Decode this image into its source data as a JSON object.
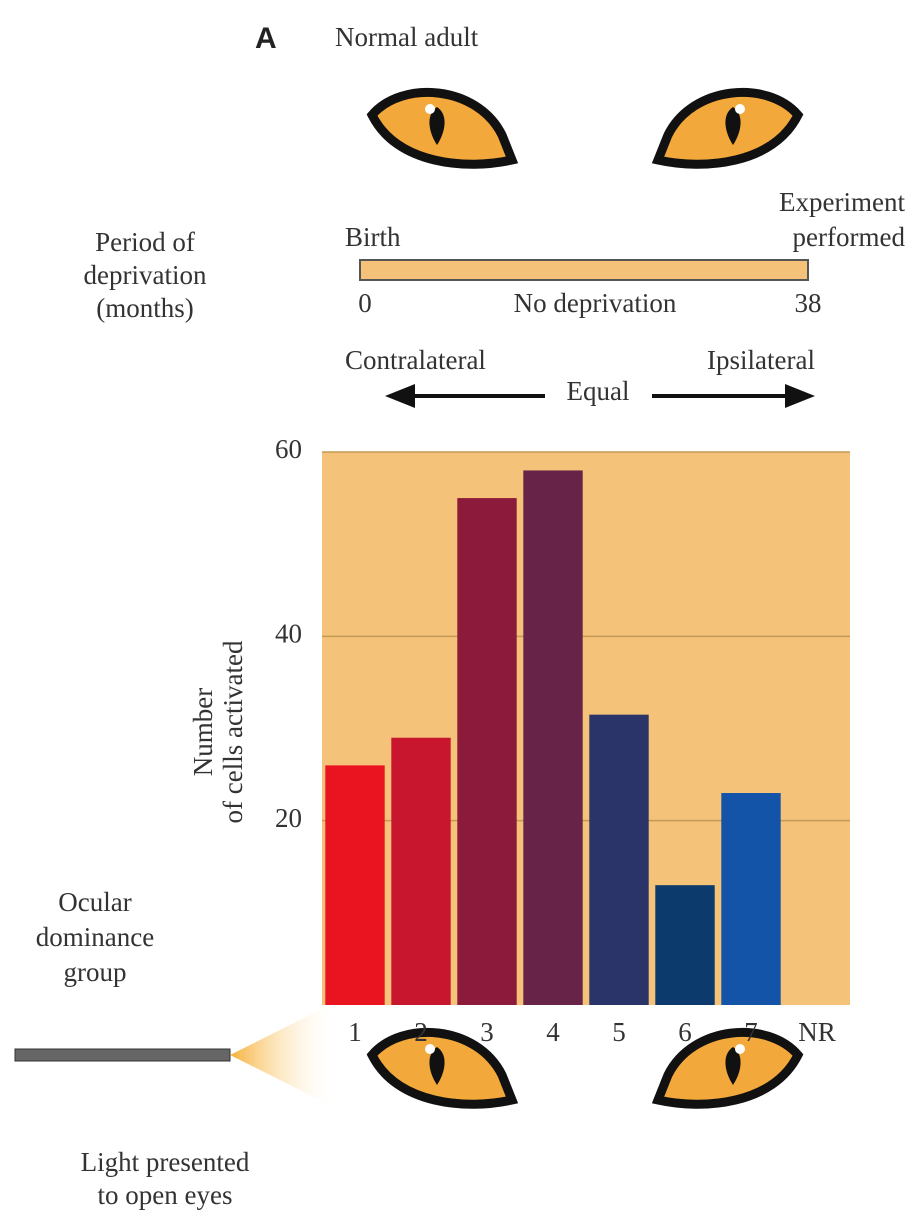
{
  "chart_data": {
    "type": "bar",
    "panel_label": "A",
    "title": "Normal adult",
    "timeline": {
      "label_lines": [
        "Period of",
        "deprivation",
        "(months)"
      ],
      "start_text": "Birth",
      "end_text_lines": [
        "Experiment",
        "performed"
      ],
      "start": "0",
      "end": "38",
      "middle_text": "No deprivation"
    },
    "direction": {
      "left": "Contralateral",
      "right": "Ipsilateral",
      "middle": "Equal"
    },
    "y_label_lines": [
      "Number",
      "of cells activated"
    ],
    "x_label_lines": [
      "Ocular",
      "dominance",
      "group"
    ],
    "stimulus_lines": [
      "Light presented",
      "to open eyes"
    ],
    "categories": [
      "1",
      "2",
      "3",
      "4",
      "5",
      "6",
      "7",
      "NR"
    ],
    "values": [
      26,
      29,
      55,
      58,
      31.5,
      13,
      23,
      null
    ],
    "colors": [
      "#ea1420",
      "#c8162e",
      "#8c1a3a",
      "#682448",
      "#2a3468",
      "#0c3a6c",
      "#1454a8",
      "#1454a8"
    ],
    "plot_color": "#f5c27a",
    "ylim": [
      0,
      60
    ],
    "yticks": [
      20,
      40,
      60
    ],
    "grid": true
  }
}
